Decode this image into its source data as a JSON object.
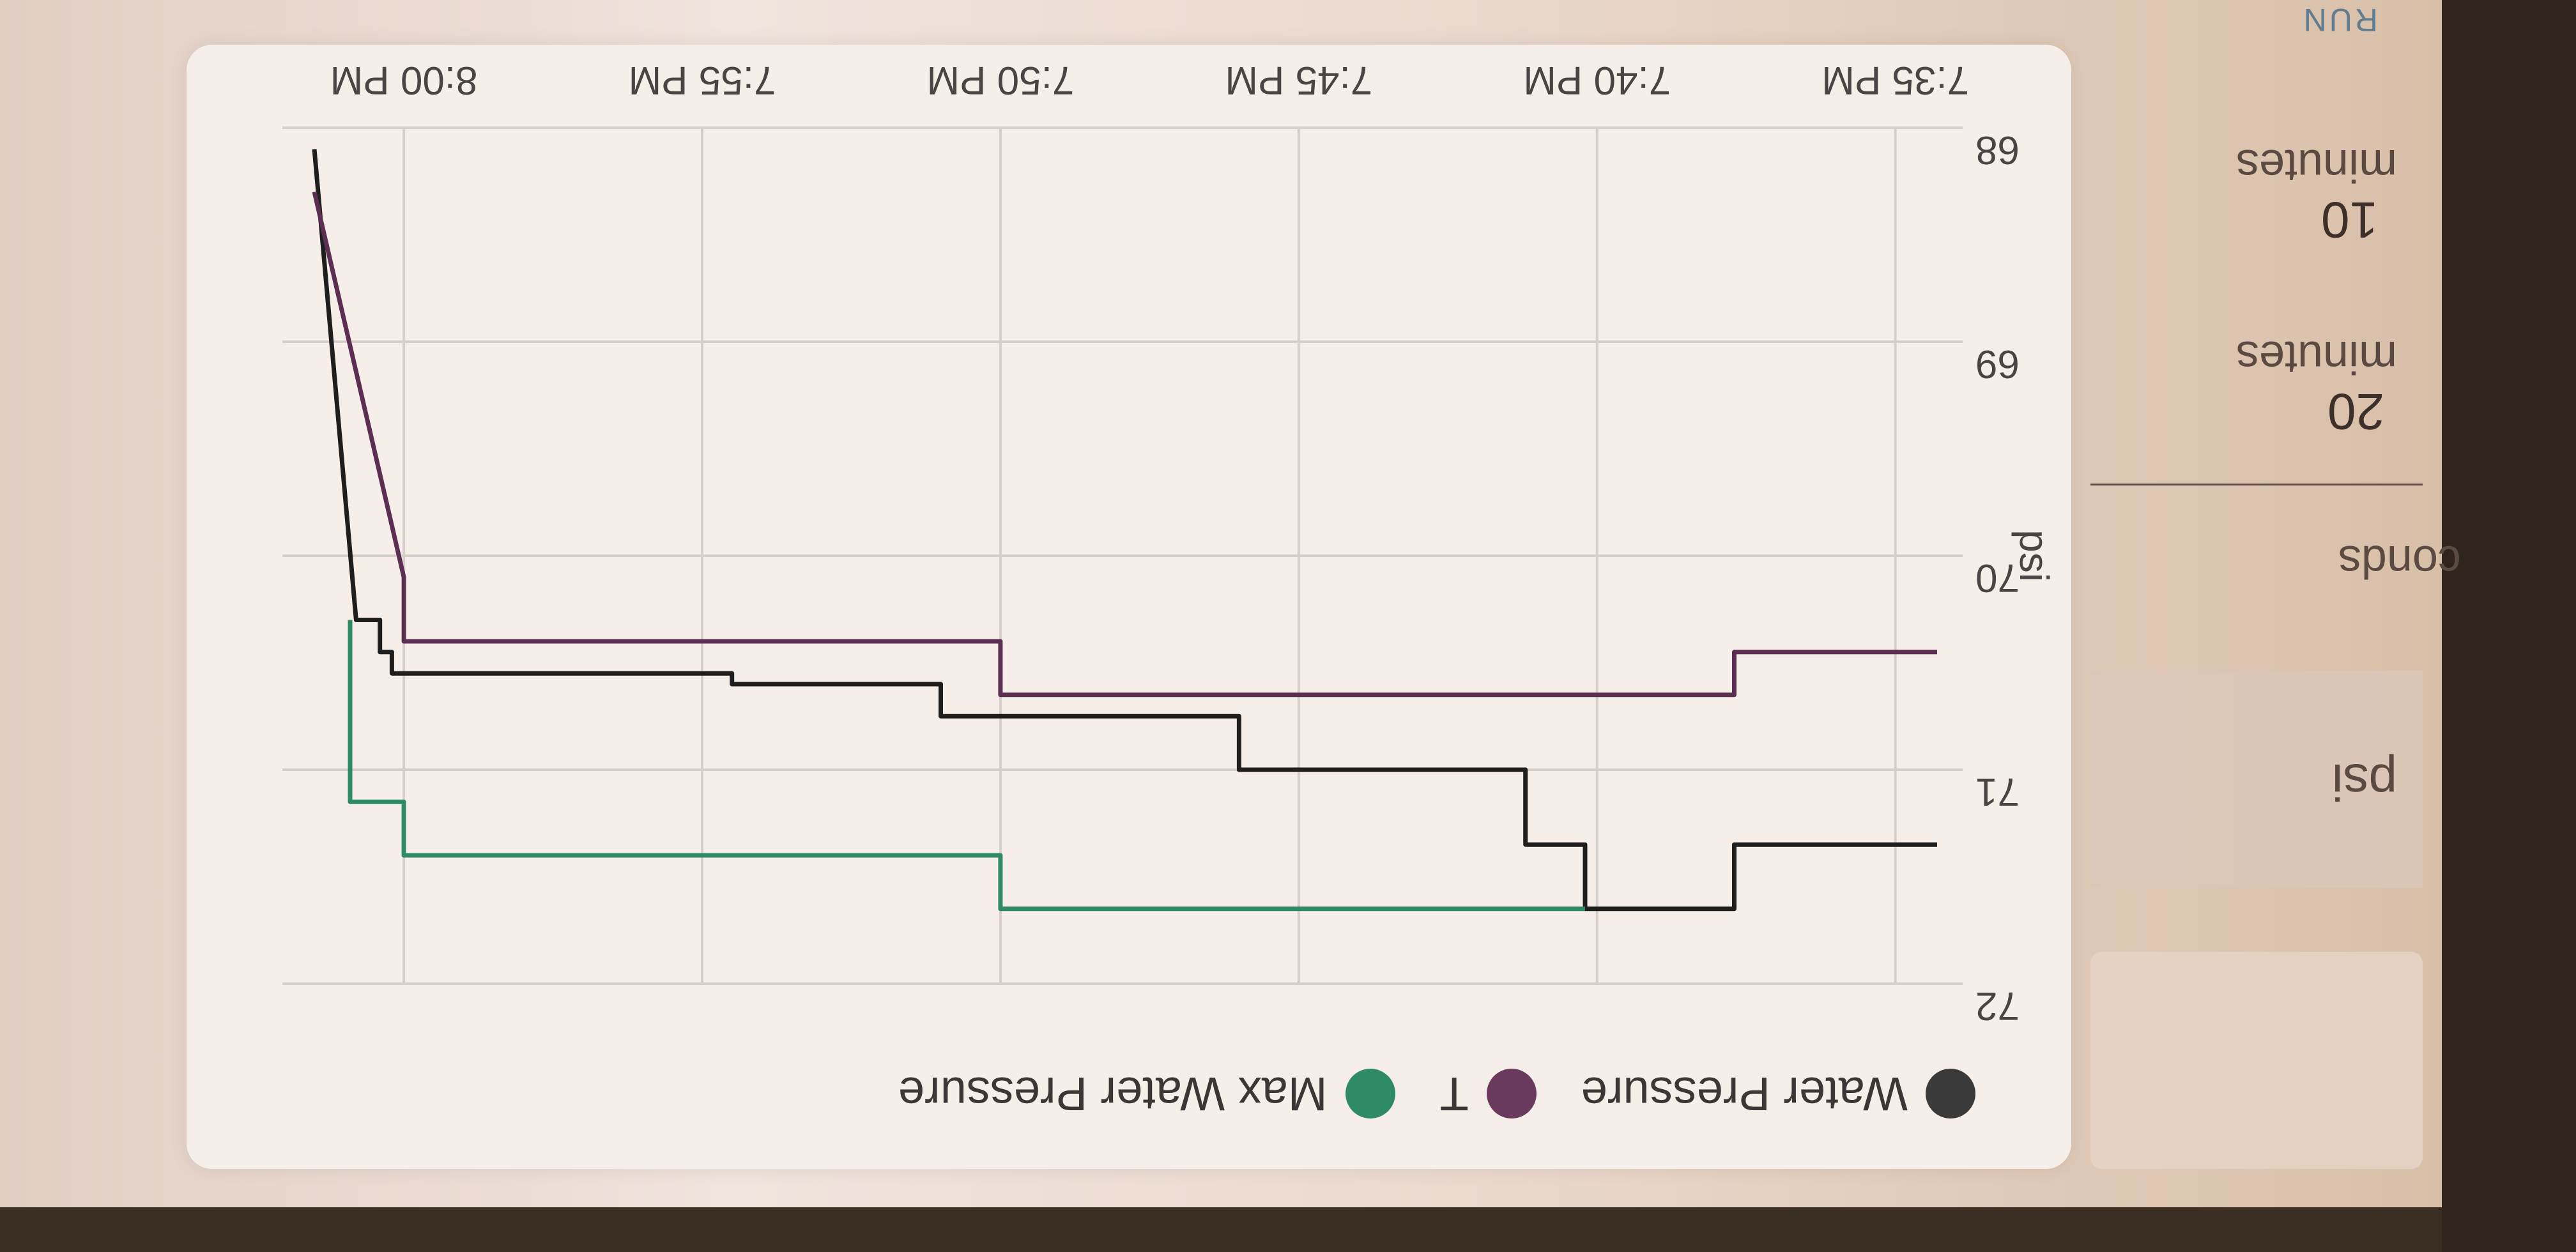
{
  "side_panel": {
    "unit_label": "psi",
    "seconds_label": "conds",
    "interval_1": {
      "value": "20",
      "unit": "minutes"
    },
    "interval_2": {
      "value": "10",
      "unit": "minutes"
    },
    "run_button": "RUN"
  },
  "chart_data": {
    "type": "line",
    "title": "",
    "xlabel": "",
    "ylabel": "psi",
    "ylim": [
      68,
      72
    ],
    "y_ticks": [
      "68",
      "69",
      "70",
      "71",
      "72"
    ],
    "x_tick_labels": [
      "7:35 PM",
      "7:40 PM",
      "7:45 PM",
      "7:50 PM",
      "7:55 PM",
      "8:00 PM"
    ],
    "x_ticks_minutes": [
      0,
      5,
      10,
      15,
      20,
      25
    ],
    "xlim_minutes": [
      -0.7,
      26.5
    ],
    "legend_position": "top-left",
    "grid": true,
    "series": [
      {
        "name": "Water Pressure",
        "color": "#1e1e1e",
        "points_minutes_psi": [
          [
            -0.7,
            71.35
          ],
          [
            2.7,
            71.35
          ],
          [
            2.7,
            71.65
          ],
          [
            5.2,
            71.65
          ],
          [
            5.2,
            71.35
          ],
          [
            6.2,
            71.35
          ],
          [
            6.2,
            71.0
          ],
          [
            11.0,
            71.0
          ],
          [
            11.0,
            70.75
          ],
          [
            16.0,
            70.75
          ],
          [
            16.0,
            70.6
          ],
          [
            19.5,
            70.6
          ],
          [
            19.5,
            70.55
          ],
          [
            25.2,
            70.55
          ],
          [
            25.2,
            70.45
          ],
          [
            25.4,
            70.45
          ],
          [
            25.4,
            70.3
          ],
          [
            25.8,
            70.3
          ],
          [
            26.5,
            68.1
          ]
        ]
      },
      {
        "name": "T",
        "color": "#5c2f52",
        "points_minutes_psi": [
          [
            -0.7,
            70.45
          ],
          [
            2.7,
            70.45
          ],
          [
            2.7,
            70.65
          ],
          [
            15.0,
            70.65
          ],
          [
            15.0,
            70.4
          ],
          [
            25.0,
            70.4
          ],
          [
            25.0,
            70.1
          ],
          [
            26.5,
            68.3
          ]
        ]
      },
      {
        "name": "Max Water Pressure",
        "color": "#2e8b63",
        "points_minutes_psi": [
          [
            5.2,
            71.65
          ],
          [
            15.0,
            71.65
          ],
          [
            15.0,
            71.4
          ],
          [
            25.0,
            71.4
          ],
          [
            25.0,
            71.15
          ],
          [
            25.9,
            71.15
          ],
          [
            25.9,
            70.3
          ]
        ]
      }
    ]
  }
}
